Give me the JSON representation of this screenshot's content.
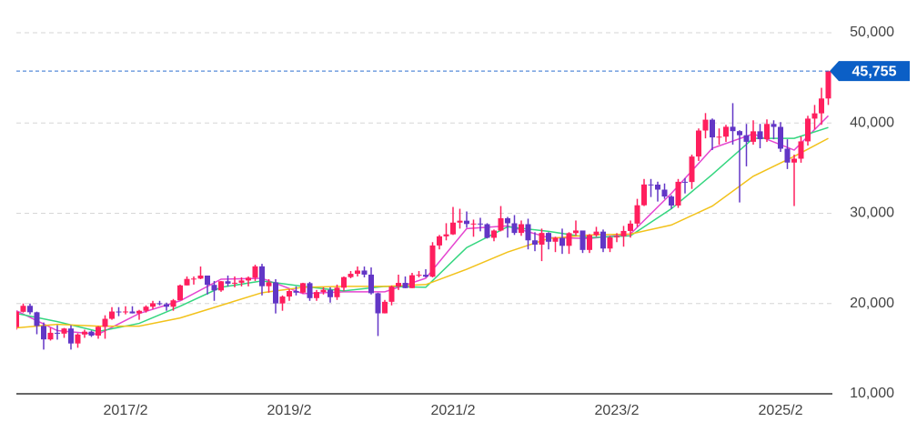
{
  "chart_data": {
    "type": "candlestick",
    "categories": [
      null,
      null,
      null,
      null,
      null,
      null,
      null,
      null,
      null,
      null,
      null,
      null,
      null,
      null,
      null,
      null,
      "2017/2",
      null,
      null,
      null,
      null,
      null,
      null,
      null,
      null,
      null,
      null,
      null,
      null,
      null,
      null,
      null,
      null,
      null,
      null,
      null,
      null,
      null,
      null,
      null,
      "2019/2",
      null,
      null,
      null,
      null,
      null,
      null,
      null,
      null,
      null,
      null,
      null,
      null,
      null,
      null,
      null,
      null,
      null,
      null,
      null,
      null,
      null,
      null,
      null,
      "2021/2",
      null,
      null,
      null,
      null,
      null,
      null,
      null,
      null,
      null,
      null,
      null,
      null,
      null,
      null,
      null,
      null,
      null,
      null,
      null,
      null,
      null,
      null,
      null,
      "2023/2",
      null,
      null,
      null,
      null,
      null,
      null,
      null,
      null,
      null,
      null,
      null,
      null,
      null,
      null,
      null,
      null,
      null,
      null,
      null,
      null,
      null,
      null,
      null,
      "2025/2",
      null,
      null,
      null,
      null,
      null,
      null,
      null
    ],
    "open": [
      17388,
      19083,
      19747,
      19033,
      17518,
      16026,
      16758,
      16666,
      17234,
      15575,
      16569,
      16887,
      16449,
      17425,
      18308,
      19114,
      19041,
      19118,
      18909,
      19196,
      19650,
      20033,
      19925,
      19646,
      20356,
      22011,
      22724,
      22764,
      23098,
      22068,
      21454,
      22467,
      22201,
      22304,
      22553,
      22865,
      24120,
      21920,
      22351,
      20014,
      20773,
      21385,
      21205,
      22258,
      20601,
      21275,
      21521,
      20704,
      21755,
      22927,
      23293,
      23656,
      23205,
      21142,
      18917,
      20193,
      21877,
      22288,
      21710,
      23139,
      23185,
      22977,
      26433,
      27444,
      27663,
      28966,
      29178,
      28812,
      28860,
      28791,
      27283,
      28089,
      29452,
      28892,
      27821,
      28791,
      27001,
      26526,
      27821,
      26847,
      27279,
      26393,
      27801,
      28091,
      25937,
      27587,
      27968,
      26094,
      27327,
      27445,
      28041,
      28856,
      30887,
      33189,
      33172,
      32619,
      31857,
      30858,
      33486,
      33464,
      36286,
      39166,
      40369,
      38405,
      38487,
      39583,
      39101,
      38647,
      37919,
      39081,
      38208,
      39894,
      39572,
      37155,
      35617,
      36045,
      37965,
      40487,
      41069,
      42718
    ],
    "high": [
      19200,
      20000,
      20000,
      19100,
      17900,
      17300,
      17600,
      17300,
      17600,
      16700,
      17100,
      17000,
      17500,
      18700,
      19600,
      19600,
      19700,
      19700,
      19300,
      19800,
      20300,
      20300,
      20100,
      20500,
      22100,
      23000,
      23000,
      24100,
      23000,
      22500,
      22500,
      23100,
      23000,
      22900,
      23000,
      24300,
      24400,
      22700,
      22700,
      20900,
      21600,
      21900,
      22300,
      22400,
      21500,
      21800,
      21800,
      22100,
      23000,
      23600,
      24100,
      24100,
      24000,
      21200,
      20400,
      22000,
      23200,
      23000,
      23400,
      23600,
      23800,
      26800,
      27600,
      28900,
      30700,
      30500,
      30200,
      29300,
      29500,
      28900,
      28200,
      30800,
      29600,
      29800,
      29200,
      29400,
      27900,
      28300,
      27900,
      27400,
      28300,
      27900,
      29200,
      28000,
      27700,
      28500,
      28200,
      27500,
      27800,
      28600,
      29200,
      31600,
      33800,
      33800,
      33500,
      33300,
      32000,
      33800,
      33900,
      36500,
      39400,
      41100,
      40500,
      39400,
      39800,
      42200,
      39200,
      39900,
      40300,
      39900,
      40400,
      40300,
      40100,
      38200,
      36500,
      38500,
      40800,
      42000,
      43900,
      45800
    ],
    "low": [
      17100,
      19000,
      18800,
      16600,
      14900,
      15900,
      16000,
      16200,
      14900,
      15100,
      16200,
      16300,
      16100,
      16100,
      18200,
      18600,
      18800,
      18900,
      18200,
      19000,
      19400,
      19800,
      19200,
      19200,
      20400,
      22000,
      22100,
      22700,
      21000,
      20300,
      21300,
      21900,
      21800,
      21900,
      21900,
      22500,
      20900,
      21200,
      18900,
      19200,
      20300,
      20900,
      21100,
      20300,
      20300,
      21000,
      20100,
      20400,
      21400,
      22800,
      23000,
      22900,
      21000,
      16400,
      18900,
      19800,
      21500,
      21700,
      21700,
      22900,
      22900,
      22900,
      26000,
      27000,
      27600,
      28300,
      28400,
      27400,
      28000,
      27200,
      26900,
      28000,
      27300,
      27600,
      27500,
      26000,
      25800,
      24700,
      26000,
      25700,
      25500,
      25500,
      27500,
      25600,
      25600,
      27400,
      25700,
      25700,
      26800,
      26300,
      27300,
      28500,
      30800,
      31800,
      31300,
      31600,
      30500,
      30600,
      32200,
      32700,
      35800,
      38300,
      37000,
      37600,
      37900,
      37600,
      31200,
      35200,
      37600,
      37200,
      37900,
      38200,
      36800,
      34900,
      30800,
      35600,
      37500,
      39300,
      39800,
      42000
    ],
    "close": [
      19083,
      19747,
      19033,
      17518,
      16026,
      16758,
      16666,
      17234,
      15575,
      16569,
      16887,
      16449,
      17425,
      18308,
      19114,
      19041,
      19118,
      18909,
      19196,
      19650,
      20033,
      19925,
      19646,
      20356,
      22011,
      22724,
      22764,
      23098,
      22068,
      21454,
      22467,
      22201,
      22304,
      22553,
      22865,
      24120,
      21920,
      22351,
      20014,
      20773,
      21385,
      21205,
      22258,
      20601,
      21275,
      21521,
      20704,
      21755,
      22927,
      23293,
      23656,
      23205,
      21142,
      18917,
      20193,
      21877,
      22288,
      21710,
      23139,
      23185,
      22977,
      26433,
      27444,
      27663,
      28966,
      29178,
      28812,
      28860,
      28791,
      27283,
      28089,
      29452,
      28892,
      27821,
      28791,
      27001,
      26526,
      27821,
      26847,
      27279,
      26393,
      27801,
      28091,
      25937,
      27587,
      27968,
      26094,
      27327,
      27445,
      28041,
      28856,
      30887,
      33189,
      33172,
      32619,
      31857,
      30858,
      33486,
      33464,
      36286,
      39166,
      40369,
      38405,
      38487,
      39583,
      39101,
      38647,
      37919,
      39081,
      38208,
      39894,
      39572,
      37155,
      35617,
      36045,
      37965,
      40487,
      41069,
      42718,
      45755
    ],
    "up_color": "#ff1f5e",
    "down_color": "#6236c6",
    "moving_averages": {
      "x": [
        "2015/10",
        "2016/4",
        "2016/10",
        "2017/4",
        "2017/10",
        "2018/4",
        "2018/10",
        "2019/4",
        "2019/10",
        "2020/4",
        "2020/10",
        "2021/4",
        "2021/10",
        "2022/4",
        "2022/10",
        "2023/4",
        "2023/10",
        "2024/4",
        "2024/10",
        "2025/4",
        "2025/9"
      ],
      "series": [
        {
          "color": "#e545d0",
          "values": [
            19200,
            17000,
            16600,
            18900,
            20300,
            22700,
            22800,
            21100,
            21300,
            21300,
            22800,
            28300,
            28600,
            27300,
            27200,
            27700,
            32200,
            37200,
            38800,
            37000,
            40800
          ]
        },
        {
          "color": "#34d67f",
          "values": [
            18900,
            18000,
            16900,
            17800,
            19700,
            21800,
            22500,
            21900,
            21400,
            21900,
            21800,
            26200,
            28500,
            28000,
            27300,
            27500,
            30500,
            34300,
            38300,
            38300,
            39500
          ]
        },
        {
          "color": "#f2c21b",
          "values": [
            17300,
            17700,
            17500,
            17500,
            18400,
            19800,
            21200,
            21800,
            21900,
            21900,
            22100,
            23800,
            25700,
            27200,
            27600,
            27700,
            28700,
            30800,
            34100,
            36300,
            38300
          ]
        }
      ]
    },
    "last_price": {
      "value": 45755,
      "label": "45,755"
    },
    "ylim": [
      10000,
      50000
    ],
    "yticks": [
      {
        "value": 10000,
        "label": "10,000"
      },
      {
        "value": 20000,
        "label": "20,000"
      },
      {
        "value": 30000,
        "label": "30,000"
      },
      {
        "value": 40000,
        "label": "40,000"
      },
      {
        "value": 50000,
        "label": "50,000"
      }
    ],
    "grid": true
  }
}
